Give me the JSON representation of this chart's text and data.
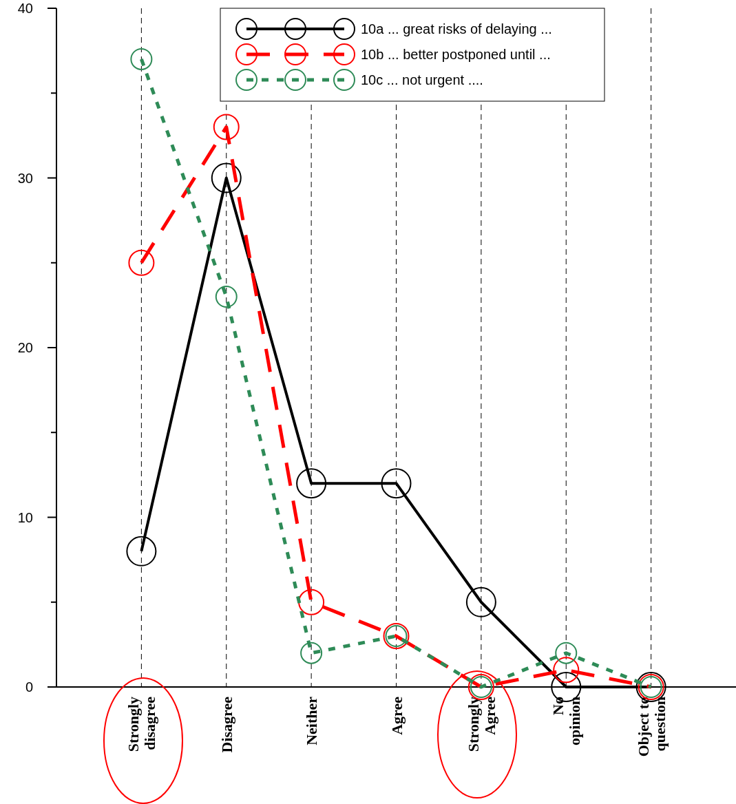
{
  "chart_data": {
    "type": "line",
    "categories": [
      "Strongly disagree",
      "Disagree",
      "Neither",
      "Agree",
      "Strongly Agree",
      "No opinion",
      "Object to question"
    ],
    "series": [
      {
        "name": "10a  ... great risks of delaying ...",
        "color": "#000000",
        "line_style": "solid",
        "values": [
          8,
          30,
          12,
          12,
          5,
          0,
          0
        ]
      },
      {
        "name": "10b ... better postponed until ...",
        "color": "#ff0000",
        "line_style": "dashed",
        "values": [
          25,
          33,
          5,
          3,
          0,
          1,
          0
        ]
      },
      {
        "name": "10c  ... not urgent ....",
        "color": "#2e8b57",
        "line_style": "dotted",
        "values": [
          37,
          23,
          2,
          3,
          0,
          2,
          0
        ]
      }
    ],
    "ylim": [
      0,
      40
    ],
    "yticks": [
      0,
      {
        "value": 5,
        "label": null
      },
      10,
      {
        "value": 15,
        "label": null
      },
      20,
      {
        "value": 25,
        "label": null
      },
      30,
      {
        "value": 35,
        "label": null
      },
      40
    ],
    "grid": "x",
    "legend": "top",
    "marker": "circle"
  }
}
